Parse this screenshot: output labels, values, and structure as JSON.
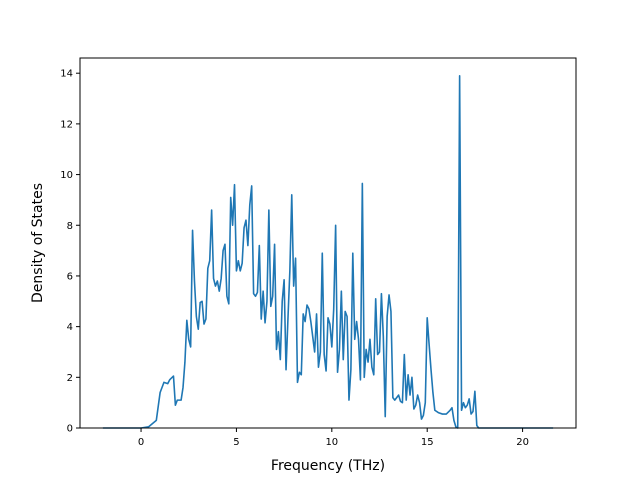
{
  "chart_data": {
    "type": "line",
    "title": "",
    "xlabel": "Frequency (THz)",
    "ylabel": "Density of States",
    "xlim": [
      -3.2,
      22.8
    ],
    "ylim": [
      0,
      14.6
    ],
    "x_ticks": [
      0,
      5,
      10,
      15,
      20
    ],
    "y_ticks": [
      0,
      2,
      4,
      6,
      8,
      10,
      12,
      14
    ],
    "grid": false,
    "legend": "none",
    "colors": {
      "line": "#1f77b4",
      "axes": "#000000",
      "background": "#ffffff"
    },
    "series": [
      {
        "points": [
          [
            -2.0,
            0
          ],
          [
            -1.0,
            0
          ],
          [
            0.0,
            0
          ],
          [
            0.4,
            0.05
          ],
          [
            0.8,
            0.3
          ],
          [
            1.0,
            1.4
          ],
          [
            1.2,
            1.8
          ],
          [
            1.4,
            1.75
          ],
          [
            1.5,
            1.9
          ],
          [
            1.7,
            2.05
          ],
          [
            1.8,
            0.9
          ],
          [
            1.9,
            1.1
          ],
          [
            2.1,
            1.1
          ],
          [
            2.2,
            1.6
          ],
          [
            2.3,
            2.6
          ],
          [
            2.4,
            4.25
          ],
          [
            2.5,
            3.5
          ],
          [
            2.6,
            3.2
          ],
          [
            2.7,
            7.8
          ],
          [
            2.8,
            5.8
          ],
          [
            2.9,
            4.4
          ],
          [
            3.0,
            3.9
          ],
          [
            3.1,
            4.95
          ],
          [
            3.2,
            5.0
          ],
          [
            3.3,
            4.1
          ],
          [
            3.4,
            4.3
          ],
          [
            3.5,
            6.3
          ],
          [
            3.6,
            6.6
          ],
          [
            3.7,
            8.6
          ],
          [
            3.8,
            5.9
          ],
          [
            3.9,
            5.6
          ],
          [
            4.0,
            5.8
          ],
          [
            4.1,
            5.4
          ],
          [
            4.2,
            5.9
          ],
          [
            4.3,
            7.0
          ],
          [
            4.4,
            7.25
          ],
          [
            4.5,
            5.2
          ],
          [
            4.6,
            4.9
          ],
          [
            4.7,
            9.1
          ],
          [
            4.8,
            8.0
          ],
          [
            4.9,
            9.6
          ],
          [
            5.0,
            6.2
          ],
          [
            5.1,
            6.6
          ],
          [
            5.2,
            6.2
          ],
          [
            5.3,
            6.5
          ],
          [
            5.4,
            7.9
          ],
          [
            5.5,
            8.2
          ],
          [
            5.6,
            7.2
          ],
          [
            5.7,
            8.8
          ],
          [
            5.8,
            9.55
          ],
          [
            5.9,
            5.3
          ],
          [
            6.0,
            5.2
          ],
          [
            6.1,
            5.35
          ],
          [
            6.2,
            7.2
          ],
          [
            6.3,
            4.3
          ],
          [
            6.4,
            5.4
          ],
          [
            6.5,
            4.15
          ],
          [
            6.6,
            5.0
          ],
          [
            6.7,
            8.6
          ],
          [
            6.8,
            4.8
          ],
          [
            6.9,
            5.2
          ],
          [
            7.0,
            7.25
          ],
          [
            7.1,
            3.1
          ],
          [
            7.2,
            3.8
          ],
          [
            7.3,
            2.7
          ],
          [
            7.4,
            5.0
          ],
          [
            7.5,
            5.85
          ],
          [
            7.6,
            2.3
          ],
          [
            7.7,
            4.3
          ],
          [
            7.8,
            6.2
          ],
          [
            7.9,
            9.2
          ],
          [
            8.0,
            5.6
          ],
          [
            8.1,
            6.7
          ],
          [
            8.2,
            1.8
          ],
          [
            8.3,
            2.2
          ],
          [
            8.4,
            2.1
          ],
          [
            8.5,
            4.5
          ],
          [
            8.6,
            4.2
          ],
          [
            8.7,
            4.85
          ],
          [
            8.8,
            4.7
          ],
          [
            8.9,
            4.2
          ],
          [
            9.0,
            3.6
          ],
          [
            9.1,
            3.0
          ],
          [
            9.2,
            4.5
          ],
          [
            9.3,
            2.4
          ],
          [
            9.4,
            3.0
          ],
          [
            9.5,
            6.9
          ],
          [
            9.6,
            2.9
          ],
          [
            9.7,
            2.25
          ],
          [
            9.8,
            4.35
          ],
          [
            9.9,
            4.1
          ],
          [
            10.0,
            3.2
          ],
          [
            10.1,
            4.7
          ],
          [
            10.2,
            8.0
          ],
          [
            10.3,
            2.2
          ],
          [
            10.4,
            3.1
          ],
          [
            10.5,
            5.4
          ],
          [
            10.6,
            2.7
          ],
          [
            10.7,
            4.6
          ],
          [
            10.8,
            4.4
          ],
          [
            10.9,
            1.1
          ],
          [
            11.0,
            2.3
          ],
          [
            11.1,
            6.9
          ],
          [
            11.2,
            3.5
          ],
          [
            11.3,
            4.2
          ],
          [
            11.4,
            3.5
          ],
          [
            11.5,
            1.9
          ],
          [
            11.6,
            9.65
          ],
          [
            11.7,
            2.0
          ],
          [
            11.8,
            3.1
          ],
          [
            11.9,
            2.6
          ],
          [
            12.0,
            3.5
          ],
          [
            12.1,
            2.4
          ],
          [
            12.2,
            2.1
          ],
          [
            12.3,
            5.1
          ],
          [
            12.4,
            2.9
          ],
          [
            12.5,
            3.0
          ],
          [
            12.6,
            5.3
          ],
          [
            12.7,
            3.6
          ],
          [
            12.8,
            0.45
          ],
          [
            12.9,
            4.4
          ],
          [
            13.0,
            5.25
          ],
          [
            13.1,
            4.6
          ],
          [
            13.2,
            1.2
          ],
          [
            13.3,
            1.1
          ],
          [
            13.4,
            1.2
          ],
          [
            13.5,
            1.3
          ],
          [
            13.6,
            1.05
          ],
          [
            13.7,
            1.0
          ],
          [
            13.8,
            2.9
          ],
          [
            13.9,
            1.1
          ],
          [
            14.0,
            2.1
          ],
          [
            14.1,
            1.3
          ],
          [
            14.2,
            2.0
          ],
          [
            14.3,
            0.75
          ],
          [
            14.4,
            0.9
          ],
          [
            14.5,
            1.3
          ],
          [
            14.6,
            1.0
          ],
          [
            14.7,
            0.35
          ],
          [
            14.8,
            0.5
          ],
          [
            14.9,
            1.0
          ],
          [
            15.0,
            4.35
          ],
          [
            15.1,
            3.3
          ],
          [
            15.2,
            2.3
          ],
          [
            15.3,
            1.4
          ],
          [
            15.4,
            0.7
          ],
          [
            15.6,
            0.6
          ],
          [
            15.8,
            0.55
          ],
          [
            16.0,
            0.55
          ],
          [
            16.2,
            0.7
          ],
          [
            16.3,
            0.8
          ],
          [
            16.4,
            0.3
          ],
          [
            16.5,
            0.05
          ],
          [
            16.6,
            0.0
          ],
          [
            16.7,
            13.9
          ],
          [
            16.8,
            0.7
          ],
          [
            16.9,
            1.0
          ],
          [
            17.0,
            0.8
          ],
          [
            17.1,
            0.9
          ],
          [
            17.2,
            1.15
          ],
          [
            17.3,
            0.55
          ],
          [
            17.4,
            0.65
          ],
          [
            17.5,
            1.45
          ],
          [
            17.6,
            0.1
          ],
          [
            17.7,
            0.0
          ],
          [
            18.0,
            0.0
          ],
          [
            19.0,
            0.0
          ],
          [
            20.0,
            0.0
          ],
          [
            21.6,
            0.0
          ]
        ]
      }
    ]
  }
}
